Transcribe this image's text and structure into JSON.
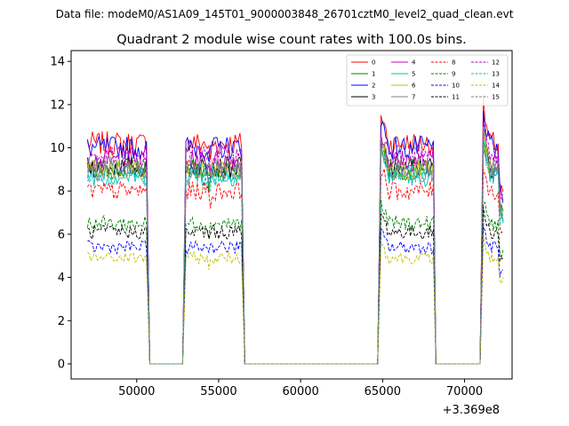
{
  "suptitle": "Data file: modeM0/AS1A09_145T01_9000003848_26701cztM0_level2_quad_clean.evt",
  "chart_data": {
    "type": "line",
    "title": "Quadrant 2 module wise count rates with 100.0s bins.",
    "xlabel": "",
    "ylabel": "",
    "x_offset_label": "+3.369e8",
    "xlim": [
      46000,
      72900
    ],
    "ylim": [
      -0.7,
      14.5
    ],
    "x_ticks": [
      50000,
      55000,
      60000,
      65000,
      70000
    ],
    "x_tick_labels": [
      "50000",
      "55000",
      "60000",
      "65000",
      "70000"
    ],
    "y_ticks": [
      0,
      2,
      4,
      6,
      8,
      10,
      12,
      14
    ],
    "y_tick_labels": [
      "0",
      "2",
      "4",
      "6",
      "8",
      "10",
      "12",
      "14"
    ],
    "segments": [
      {
        "on": 47000,
        "off": 50650,
        "zero_until": 52800
      },
      {
        "on": 53000,
        "off": 56450,
        "zero_until": 64700
      },
      {
        "on": 64900,
        "off": 68100,
        "zero_until": 70950
      },
      {
        "on": 71150,
        "off": 72350,
        "zero_until": null
      }
    ],
    "legend_position": "top-right",
    "series": [
      {
        "name": "0",
        "level": 10.2,
        "color": "#ff0000",
        "dash": "solid"
      },
      {
        "name": "1",
        "level": 9.0,
        "color": "#008000",
        "dash": "solid"
      },
      {
        "name": "2",
        "level": 10.0,
        "color": "#0000ff",
        "dash": "solid"
      },
      {
        "name": "3",
        "level": 9.1,
        "color": "#000000",
        "dash": "solid"
      },
      {
        "name": "4",
        "level": 9.4,
        "color": "#bf00bf",
        "dash": "solid"
      },
      {
        "name": "5",
        "level": 8.7,
        "color": "#00bfbf",
        "dash": "solid"
      },
      {
        "name": "6",
        "level": 9.0,
        "color": "#bfbf00",
        "dash": "solid"
      },
      {
        "name": "7",
        "level": 8.9,
        "color": "#808080",
        "dash": "solid"
      },
      {
        "name": "8",
        "level": 8.0,
        "color": "#ff0000",
        "dash": "dashed"
      },
      {
        "name": "9",
        "level": 6.5,
        "color": "#008000",
        "dash": "dashed"
      },
      {
        "name": "10",
        "level": 5.4,
        "color": "#0000ff",
        "dash": "dashed"
      },
      {
        "name": "11",
        "level": 6.1,
        "color": "#000000",
        "dash": "dashed"
      },
      {
        "name": "12",
        "level": 9.6,
        "color": "#bf00bf",
        "dash": "dashed"
      },
      {
        "name": "13",
        "level": 8.8,
        "color": "#00bfbf",
        "dash": "dashed"
      },
      {
        "name": "14",
        "level": 4.9,
        "color": "#bfbf00",
        "dash": "dashed"
      },
      {
        "name": "15",
        "level": 9.2,
        "color": "#808080",
        "dash": "dashed"
      }
    ]
  }
}
